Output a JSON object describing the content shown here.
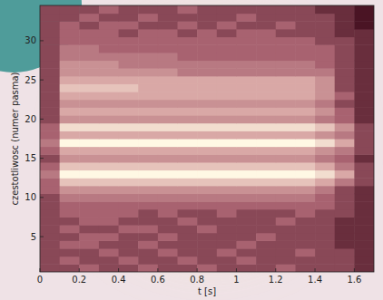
{
  "chart_data": {
    "type": "heatmap",
    "xlabel": "t [s]",
    "ylabel": "czestotliwosc (numer pasma)",
    "xlim": [
      0,
      1.7
    ],
    "xticks": [
      0,
      0.2,
      0.4,
      0.6,
      0.8,
      1,
      1.2,
      1.4,
      1.6
    ],
    "ylim": [
      0.5,
      34.5
    ],
    "yticks": [
      5,
      10,
      15,
      20,
      25,
      30
    ],
    "zlim": [
      1,
      10
    ],
    "colors": [
      "#4a1424",
      "#a86270",
      "#d9a8a6",
      "#fff8e4"
    ],
    "x": [
      0.05,
      0.15,
      0.25,
      0.35,
      0.45,
      0.55,
      0.65,
      0.75,
      0.85,
      0.95,
      1.05,
      1.15,
      1.25,
      1.35,
      1.45,
      1.55,
      1.65
    ],
    "y": [
      1,
      2,
      3,
      4,
      5,
      6,
      7,
      8,
      9,
      10,
      11,
      12,
      13,
      14,
      15,
      16,
      17,
      18,
      19,
      20,
      21,
      22,
      23,
      24,
      25,
      26,
      27,
      28,
      29,
      30,
      31,
      32,
      33,
      34
    ],
    "values": [
      [
        3,
        3,
        4,
        3,
        3,
        4,
        3,
        3,
        4,
        3,
        3,
        3,
        4,
        3,
        3,
        3,
        2
      ],
      [
        3,
        4,
        3,
        3,
        4,
        3,
        3,
        4,
        3,
        3,
        4,
        3,
        3,
        3,
        3,
        3,
        2
      ],
      [
        3,
        3,
        3,
        4,
        3,
        3,
        4,
        3,
        3,
        4,
        3,
        3,
        3,
        4,
        3,
        3,
        2
      ],
      [
        3,
        4,
        4,
        3,
        3,
        4,
        3,
        3,
        3,
        3,
        4,
        3,
        3,
        3,
        3,
        2,
        2
      ],
      [
        3,
        3,
        4,
        4,
        3,
        3,
        4,
        3,
        3,
        3,
        3,
        4,
        3,
        3,
        3,
        2,
        2
      ],
      [
        3,
        4,
        3,
        3,
        4,
        4,
        3,
        3,
        4,
        3,
        3,
        3,
        3,
        3,
        3,
        2,
        2
      ],
      [
        3,
        3,
        4,
        4,
        3,
        3,
        3,
        4,
        3,
        3,
        3,
        3,
        4,
        3,
        3,
        2,
        2
      ],
      [
        3,
        4,
        4,
        4,
        4,
        3,
        4,
        3,
        3,
        4,
        3,
        3,
        3,
        4,
        3,
        3,
        2
      ],
      [
        3,
        4,
        4,
        4,
        4,
        4,
        4,
        4,
        4,
        4,
        4,
        4,
        4,
        4,
        4,
        3,
        2
      ],
      [
        3,
        5,
        5,
        5,
        5,
        5,
        5,
        5,
        5,
        5,
        5,
        5,
        5,
        5,
        4,
        3,
        2
      ],
      [
        4,
        6,
        6,
        6,
        6,
        6,
        6,
        6,
        6,
        6,
        6,
        6,
        6,
        6,
        5,
        3,
        2
      ],
      [
        4,
        8,
        8,
        8,
        8,
        8,
        8,
        8,
        8,
        8,
        8,
        8,
        8,
        8,
        7,
        5,
        3
      ],
      [
        5,
        10,
        10,
        10,
        10,
        10,
        10,
        10,
        10,
        10,
        10,
        10,
        10,
        10,
        9,
        7,
        3
      ],
      [
        4,
        8,
        8,
        8,
        8,
        8,
        8,
        8,
        8,
        8,
        8,
        8,
        8,
        8,
        7,
        5,
        3
      ],
      [
        3,
        6,
        6,
        6,
        6,
        6,
        6,
        6,
        6,
        6,
        6,
        6,
        6,
        6,
        5,
        4,
        2
      ],
      [
        4,
        7,
        7,
        7,
        7,
        7,
        7,
        7,
        7,
        7,
        7,
        7,
        7,
        7,
        6,
        5,
        3
      ],
      [
        5,
        10,
        10,
        10,
        10,
        10,
        10,
        10,
        10,
        10,
        10,
        10,
        10,
        10,
        9,
        7,
        3
      ],
      [
        4,
        7,
        7,
        7,
        7,
        7,
        7,
        7,
        7,
        7,
        7,
        7,
        7,
        7,
        6,
        5,
        3
      ],
      [
        4,
        9,
        9,
        9,
        9,
        9,
        9,
        9,
        9,
        9,
        9,
        9,
        9,
        9,
        8,
        6,
        3
      ],
      [
        3,
        6,
        6,
        6,
        6,
        6,
        6,
        6,
        6,
        6,
        6,
        6,
        6,
        6,
        5,
        4,
        2
      ],
      [
        3,
        7,
        7,
        7,
        7,
        7,
        7,
        7,
        7,
        7,
        7,
        7,
        7,
        7,
        6,
        4,
        2
      ],
      [
        3,
        6,
        6,
        6,
        6,
        6,
        6,
        6,
        6,
        6,
        6,
        6,
        6,
        6,
        5,
        3,
        2
      ],
      [
        3,
        7,
        7,
        7,
        7,
        7,
        7,
        7,
        7,
        7,
        7,
        7,
        7,
        7,
        6,
        4,
        2
      ],
      [
        3,
        8,
        8,
        8,
        8,
        7,
        7,
        7,
        7,
        7,
        7,
        7,
        7,
        7,
        6,
        3,
        2
      ],
      [
        3,
        7,
        7,
        7,
        7,
        7,
        7,
        7,
        7,
        7,
        7,
        7,
        7,
        7,
        6,
        3,
        2
      ],
      [
        3,
        6,
        6,
        6,
        6,
        6,
        6,
        5,
        5,
        5,
        5,
        5,
        5,
        5,
        5,
        3,
        2
      ],
      [
        3,
        6,
        6,
        6,
        5,
        5,
        5,
        5,
        5,
        5,
        5,
        5,
        5,
        5,
        4,
        3,
        2
      ],
      [
        3,
        5,
        5,
        5,
        5,
        5,
        5,
        4,
        4,
        4,
        4,
        4,
        4,
        4,
        4,
        3,
        2
      ],
      [
        3,
        5,
        5,
        4,
        4,
        4,
        4,
        4,
        4,
        4,
        4,
        4,
        4,
        4,
        4,
        3,
        2
      ],
      [
        3,
        4,
        4,
        4,
        4,
        4,
        4,
        4,
        4,
        4,
        4,
        4,
        4,
        4,
        3,
        3,
        2
      ],
      [
        3,
        4,
        4,
        4,
        3,
        4,
        4,
        3,
        4,
        3,
        4,
        4,
        3,
        3,
        3,
        2,
        2
      ],
      [
        3,
        4,
        3,
        4,
        4,
        3,
        3,
        4,
        3,
        4,
        3,
        3,
        4,
        3,
        3,
        2,
        1
      ],
      [
        3,
        3,
        4,
        3,
        3,
        4,
        3,
        3,
        3,
        3,
        4,
        3,
        3,
        3,
        3,
        2,
        1
      ],
      [
        3,
        3,
        3,
        4,
        3,
        3,
        3,
        4,
        3,
        3,
        3,
        3,
        3,
        3,
        2,
        2,
        1
      ]
    ]
  }
}
